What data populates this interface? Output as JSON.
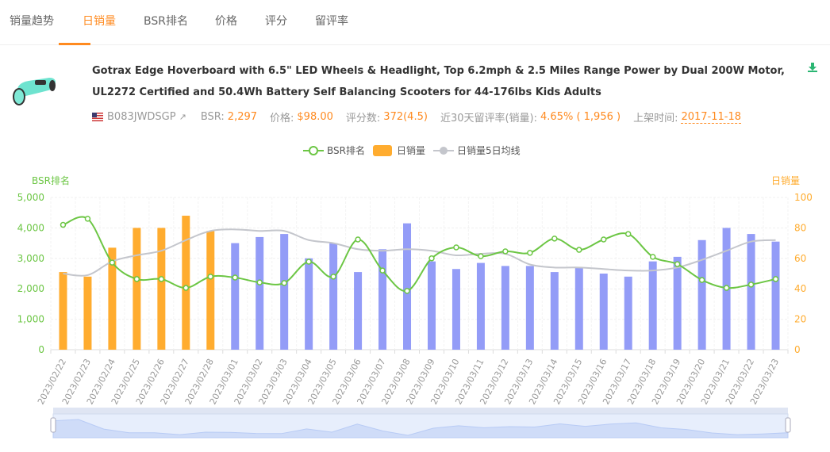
{
  "tabs": [
    "销量趋势",
    "日销量",
    "BSR排名",
    "价格",
    "评分",
    "留评率"
  ],
  "active_tab": 1,
  "product": {
    "title": "Gotrax Edge Hoverboard with 6.5\" LED Wheels & Headlight, Top 6.2mph & 2.5 Miles Range Power by Dual 200W Motor, UL2272 Certified and 50.4Wh Battery Self Balancing Scooters for 44-176lbs Kids Adults",
    "asin": "B083JWDSGP",
    "bsr_label": "BSR:",
    "bsr": "2,297",
    "price_label": "价格:",
    "price": "$98.00",
    "rating_label": "评分数:",
    "rating": "372(4.5)",
    "review_rate_label": "近30天留评率(销量):",
    "review_rate": "4.65% ( 1,956 )",
    "listed_label": "上架时间:",
    "listed": "2017-11-18"
  },
  "colors": {
    "accent": "#ff8a1f",
    "bsr": "#6cc644",
    "bar_past": "#ffac2f",
    "bar_recent": "#939cf7",
    "avg": "#c4c6cc"
  },
  "chart_data": {
    "type": "bar+line",
    "legend": [
      "BSR排名",
      "日销量",
      "日销量5日均线"
    ],
    "legend_position": "top-center",
    "ylabel_left": "BSR排名",
    "ylabel_right": "日销量",
    "ylim_left": [
      0,
      5000
    ],
    "ylim_right": [
      0,
      100
    ],
    "yticks_left": [
      "0",
      "1,000",
      "2,000",
      "3,000",
      "4,000",
      "5,000"
    ],
    "yticks_right": [
      "0",
      "20",
      "40",
      "60",
      "80",
      "100"
    ],
    "categories": [
      "2023/02/22",
      "2023/02/23",
      "2023/02/24",
      "2023/02/25",
      "2023/02/26",
      "2023/02/27",
      "2023/02/28",
      "2023/03/01",
      "2023/03/02",
      "2023/03/03",
      "2023/03/04",
      "2023/03/05",
      "2023/03/06",
      "2023/03/07",
      "2023/03/08",
      "2023/03/09",
      "2023/03/10",
      "2023/03/11",
      "2023/03/12",
      "2023/03/13",
      "2023/03/14",
      "2023/03/15",
      "2023/03/16",
      "2023/03/17",
      "2023/03/18",
      "2023/03/19",
      "2023/03/20",
      "2023/03/21",
      "2023/03/22",
      "2023/03/23"
    ],
    "series": [
      {
        "name": "BSR排名",
        "type": "line",
        "axis": "left",
        "values": [
          4100,
          4300,
          2860,
          2320,
          2320,
          2030,
          2400,
          2370,
          2210,
          2190,
          2890,
          2400,
          3620,
          2600,
          1930,
          3000,
          3360,
          3070,
          3230,
          3180,
          3650,
          3280,
          3620,
          3800,
          3050,
          2810,
          2290,
          2030,
          2140,
          2320
        ]
      },
      {
        "name": "日销量",
        "type": "bar",
        "axis": "right",
        "values": [
          51,
          48,
          67,
          80,
          80,
          88,
          78,
          70,
          74,
          76,
          60,
          70,
          51,
          66,
          83,
          58,
          53,
          57,
          55,
          55,
          51,
          54,
          50,
          48,
          58,
          61,
          72,
          80,
          76,
          71
        ]
      },
      {
        "name": "日销量5日均线",
        "type": "line",
        "axis": "right",
        "values": [
          50,
          49,
          58,
          62,
          65,
          72,
          78,
          79,
          78,
          78,
          72,
          70,
          66,
          65,
          66,
          65,
          62,
          63,
          63,
          56,
          54,
          54,
          53,
          52,
          52,
          54,
          59,
          65,
          71,
          72
        ]
      }
    ],
    "highlight_bars_count": 7,
    "grid": true
  }
}
